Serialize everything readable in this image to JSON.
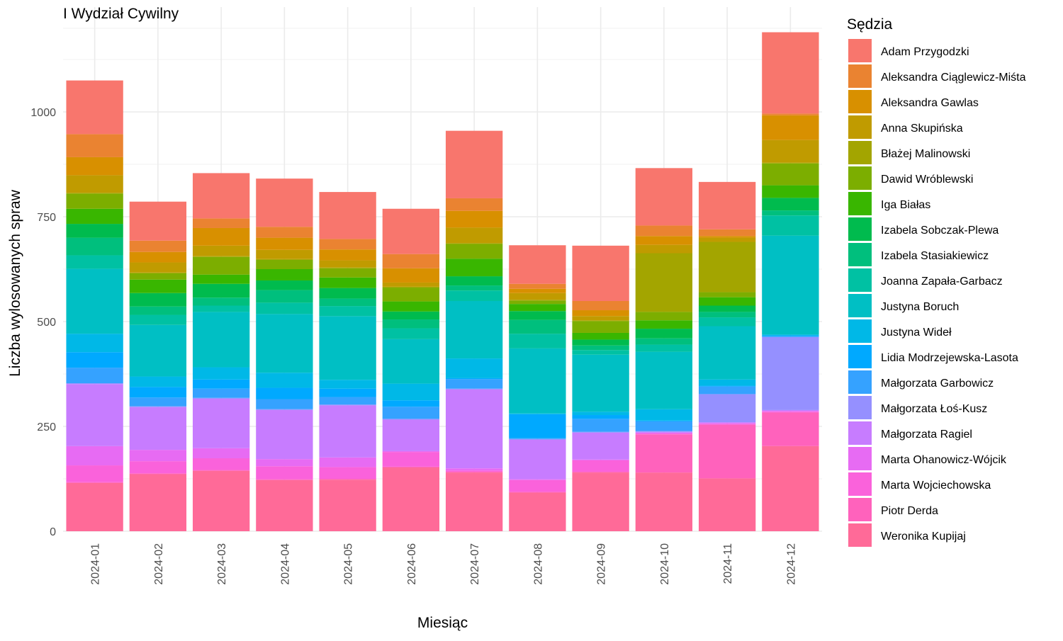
{
  "chart_data": {
    "type": "bar",
    "stacked": true,
    "title": "I Wydział Cywilny",
    "xlabel": "Miesiąc",
    "ylabel": "Liczba wylosowanych spraw",
    "ylim": [
      0,
      1200
    ],
    "yticks": [
      0,
      250,
      500,
      750,
      1000
    ],
    "grid": true,
    "legend_title": "Sędzia",
    "legend_position": "right",
    "categories": [
      "2024-01",
      "2024-02",
      "2024-03",
      "2024-04",
      "2024-05",
      "2024-06",
      "2024-07",
      "2024-08",
      "2024-09",
      "2024-10",
      "2024-11",
      "2024-12"
    ],
    "series": [
      {
        "name": "Adam Przygodzki",
        "color": "#F8766D",
        "values": [
          128,
          93,
          108,
          115,
          112,
          108,
          161,
          92,
          132,
          137,
          113,
          194
        ]
      },
      {
        "name": "Aleksandra Ciąglewicz-Miśta",
        "color": "#EA8331",
        "values": [
          55,
          27,
          23,
          26,
          25,
          34,
          30,
          12,
          22,
          25,
          16,
          4
        ]
      },
      {
        "name": "Aleksandra Gawlas",
        "color": "#D89000",
        "values": [
          43,
          25,
          42,
          29,
          26,
          34,
          40,
          10,
          14,
          21,
          4,
          59
        ]
      },
      {
        "name": "Anna Skupińska",
        "color": "#C09B00",
        "values": [
          42,
          24,
          25,
          22,
          17,
          10,
          37,
          16,
          10,
          20,
          10,
          54
        ]
      },
      {
        "name": "Błażej Malinowski",
        "color": "#A3A500",
        "values": [
          2,
          2,
          2,
          2,
          2,
          2,
          2,
          2,
          2,
          140,
          120,
          2
        ]
      },
      {
        "name": "Dawid Wróblewski",
        "color": "#7CAE00",
        "values": [
          36,
          15,
          42,
          22,
          22,
          33,
          35,
          8,
          28,
          20,
          12,
          52
        ]
      },
      {
        "name": "Iga Białas",
        "color": "#39B600",
        "values": [
          36,
          32,
          22,
          27,
          25,
          24,
          42,
          17,
          16,
          20,
          20,
          30
        ]
      },
      {
        "name": "Izabela Sobczak-Plewa",
        "color": "#00BB4E",
        "values": [
          33,
          32,
          33,
          23,
          25,
          19,
          22,
          21,
          14,
          23,
          15,
          30
        ]
      },
      {
        "name": "Izabela Stasiakiewicz",
        "color": "#00BF7D",
        "values": [
          42,
          20,
          19,
          30,
          18,
          21,
          12,
          33,
          11,
          15,
          13,
          12
        ]
      },
      {
        "name": "Joanna Zapała-Garbacz",
        "color": "#00C1A3",
        "values": [
          32,
          24,
          15,
          27,
          24,
          26,
          25,
          35,
          11,
          17,
          21,
          48
        ]
      },
      {
        "name": "Justyna Boruch",
        "color": "#00BFC4",
        "values": [
          155,
          123,
          132,
          140,
          152,
          106,
          137,
          155,
          136,
          137,
          127,
          236
        ]
      },
      {
        "name": "Justyna Wideł",
        "color": "#00B8E7",
        "values": [
          44,
          25,
          29,
          36,
          21,
          40,
          47,
          2,
          8,
          27,
          15,
          2
        ]
      },
      {
        "name": "Lidia Modrzejewska-Lasota",
        "color": "#00A9FF",
        "values": [
          37,
          25,
          22,
          27,
          20,
          15,
          2,
          57,
          9,
          2,
          2,
          2
        ]
      },
      {
        "name": "Małgorzata Garbowicz",
        "color": "#35A2FF",
        "values": [
          37,
          21,
          22,
          24,
          18,
          29,
          23,
          2,
          31,
          23,
          18,
          2
        ]
      },
      {
        "name": "Małgorzata Łoś-Kusz",
        "color": "#9590FF",
        "values": [
          2,
          2,
          2,
          2,
          2,
          2,
          2,
          2,
          2,
          2,
          67,
          174
        ]
      },
      {
        "name": "Małgorzata Ragiel",
        "color": "#C77CFF",
        "values": [
          148,
          102,
          118,
          117,
          124,
          75,
          188,
          94,
          64,
          2,
          2,
          2
        ]
      },
      {
        "name": "Marta Ohanowicz-Wójcik",
        "color": "#E76BF3",
        "values": [
          46,
          27,
          24,
          17,
          23,
          2,
          5,
          2,
          2,
          2,
          2,
          2
        ]
      },
      {
        "name": "Marta Wojciechowska",
        "color": "#FA62DB",
        "values": [
          40,
          29,
          28,
          31,
          28,
          35,
          3,
          28,
          27,
          2,
          2,
          2
        ]
      },
      {
        "name": "Piotr Derda",
        "color": "#FF62BC",
        "values": [
          2,
          2,
          2,
          2,
          2,
          2,
          2,
          2,
          2,
          91,
          128,
          80
        ]
      },
      {
        "name": "Weronika Kupijaj",
        "color": "#FF6A98",
        "values": [
          115,
          136,
          144,
          122,
          123,
          152,
          140,
          92,
          140,
          140,
          126,
          203
        ]
      }
    ]
  }
}
